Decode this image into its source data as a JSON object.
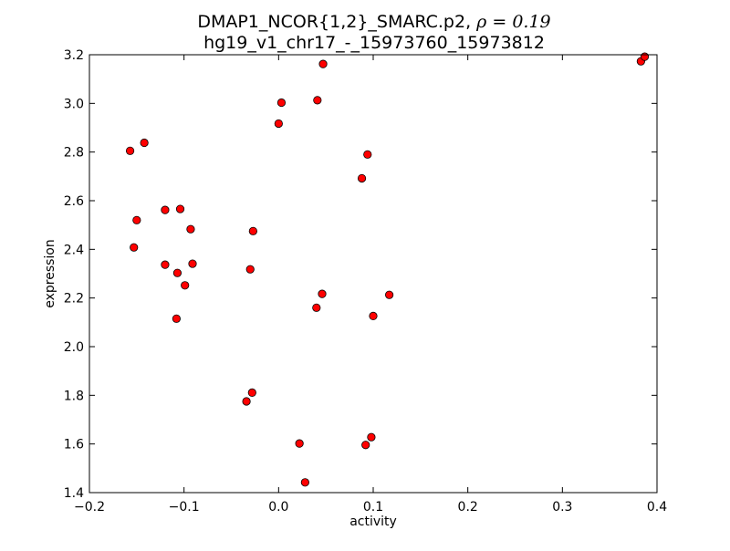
{
  "chart_data": {
    "type": "scatter",
    "title_prefix": "DMAP1_NCOR{1,2}_SMARC.p2, ",
    "title_rho": "ρ = 0.19",
    "subtitle": "hg19_v1_chr17_-_15973760_15973812",
    "xlabel": "activity",
    "ylabel": "expression",
    "xlim": [
      -0.2,
      0.4
    ],
    "ylim": [
      1.4,
      3.2
    ],
    "xticks": [
      {
        "value": -0.2,
        "label": "−0.2"
      },
      {
        "value": -0.1,
        "label": "−0.1"
      },
      {
        "value": 0.0,
        "label": "0.0"
      },
      {
        "value": 0.1,
        "label": "0.1"
      },
      {
        "value": 0.2,
        "label": "0.2"
      },
      {
        "value": 0.3,
        "label": "0.3"
      },
      {
        "value": 0.4,
        "label": "0.4"
      }
    ],
    "yticks": [
      {
        "value": 1.4,
        "label": "1.4"
      },
      {
        "value": 1.6,
        "label": "1.6"
      },
      {
        "value": 1.8,
        "label": "1.8"
      },
      {
        "value": 2.0,
        "label": "2.0"
      },
      {
        "value": 2.2,
        "label": "2.2"
      },
      {
        "value": 2.4,
        "label": "2.4"
      },
      {
        "value": 2.6,
        "label": "2.6"
      },
      {
        "value": 2.8,
        "label": "2.8"
      },
      {
        "value": 3.0,
        "label": "3.0"
      },
      {
        "value": 3.2,
        "label": "3.2"
      }
    ],
    "grid": false,
    "marker_color": "#ff0000",
    "marker_edge_color": "#000000",
    "points": [
      {
        "x": -0.157,
        "y": 2.805
      },
      {
        "x": -0.142,
        "y": 2.838
      },
      {
        "x": -0.15,
        "y": 2.52
      },
      {
        "x": -0.153,
        "y": 2.408
      },
      {
        "x": -0.12,
        "y": 2.562
      },
      {
        "x": -0.104,
        "y": 2.566
      },
      {
        "x": -0.093,
        "y": 2.483
      },
      {
        "x": -0.12,
        "y": 2.337
      },
      {
        "x": -0.107,
        "y": 2.303
      },
      {
        "x": -0.091,
        "y": 2.341
      },
      {
        "x": -0.099,
        "y": 2.252
      },
      {
        "x": -0.108,
        "y": 2.115
      },
      {
        "x": -0.027,
        "y": 2.475
      },
      {
        "x": -0.03,
        "y": 2.318
      },
      {
        "x": 0.0,
        "y": 2.917
      },
      {
        "x": 0.003,
        "y": 3.003
      },
      {
        "x": 0.041,
        "y": 3.013
      },
      {
        "x": 0.047,
        "y": 3.162
      },
      {
        "x": 0.094,
        "y": 2.79
      },
      {
        "x": 0.088,
        "y": 2.692
      },
      {
        "x": 0.046,
        "y": 2.217
      },
      {
        "x": 0.04,
        "y": 2.16
      },
      {
        "x": 0.117,
        "y": 2.213
      },
      {
        "x": 0.1,
        "y": 2.126
      },
      {
        "x": -0.028,
        "y": 1.811
      },
      {
        "x": -0.034,
        "y": 1.775
      },
      {
        "x": 0.022,
        "y": 1.602
      },
      {
        "x": 0.092,
        "y": 1.596
      },
      {
        "x": 0.098,
        "y": 1.628
      },
      {
        "x": 0.028,
        "y": 1.442
      },
      {
        "x": 0.383,
        "y": 3.173
      },
      {
        "x": 0.387,
        "y": 3.192
      }
    ]
  }
}
